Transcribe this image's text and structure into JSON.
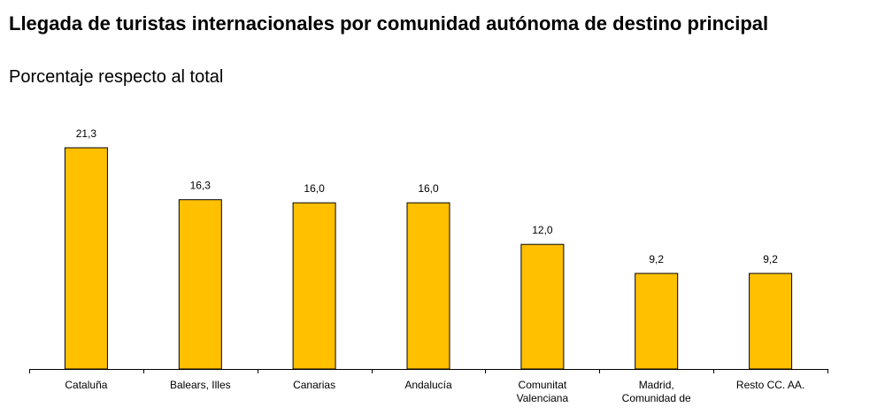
{
  "chart_data": {
    "type": "bar",
    "title": "Llegada de turistas internacionales por comunidad autónoma de destino principal",
    "subtitle": "Porcentaje respecto al total",
    "categories": [
      [
        "Cataluña"
      ],
      [
        "Balears, Illes"
      ],
      [
        "Canarias"
      ],
      [
        "Andalucía"
      ],
      [
        "Comunitat",
        "Valenciana"
      ],
      [
        "Madrid,",
        "Comunidad de"
      ],
      [
        "Resto CC. AA."
      ]
    ],
    "values": [
      21.3,
      16.3,
      16.0,
      16.0,
      12.0,
      9.2,
      9.2
    ],
    "value_labels": [
      "21,3",
      "16,3",
      "16,0",
      "16,0",
      "12,0",
      "9,2",
      "9,2"
    ],
    "xlabel": "",
    "ylabel": "",
    "ylim": [
      0,
      21.3
    ],
    "grid": false,
    "legend": "none",
    "bar_color": "#FFC000",
    "bar_edge_color": "#000000"
  }
}
